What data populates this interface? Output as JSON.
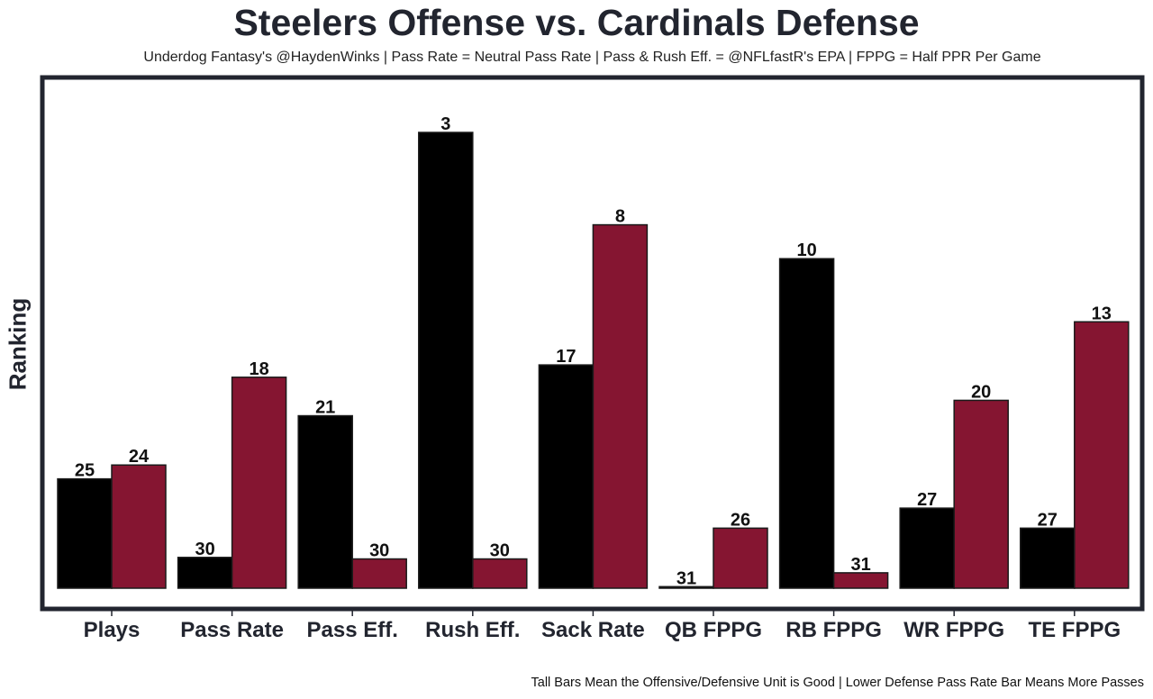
{
  "chart_data": {
    "type": "bar",
    "title": "Steelers Offense vs. Cardinals Defense",
    "subtitle": "Underdog Fantasy's @HaydenWinks | Pass Rate = Neutral Pass Rate | Pass & Rush Eff. = @NFLfastR's EPA | FPPG = Half PPR Per Game",
    "footnote": "Tall Bars Mean the Offensive/Defensive Unit is Good | Lower Defense Pass Rate Bar Means More Passes",
    "xlabel": "",
    "ylabel": "Ranking",
    "ylim": [
      0,
      30
    ],
    "grid": false,
    "legend": "none",
    "categories": [
      "Plays",
      "Pass Rate",
      "Pass Eff.",
      "Rush Eff.",
      "Sack Rate",
      "QB FPPG",
      "RB FPPG",
      "WR FPPG",
      "TE FPPG"
    ],
    "series": [
      {
        "name": "Steelers Offense",
        "color": "#000000",
        "rank_labels": [
          25,
          30,
          21,
          3,
          17,
          31,
          10,
          27,
          27
        ],
        "values": [
          7.1,
          2.0,
          11.2,
          29.6,
          14.5,
          0.1,
          21.4,
          5.2,
          3.9
        ]
      },
      {
        "name": "Cardinals Defense",
        "color": "#851531",
        "rank_labels": [
          24,
          18,
          30,
          30,
          8,
          26,
          31,
          20,
          13
        ],
        "values": [
          8.0,
          13.7,
          1.9,
          1.9,
          23.6,
          3.9,
          1.0,
          12.2,
          17.3
        ]
      }
    ]
  }
}
